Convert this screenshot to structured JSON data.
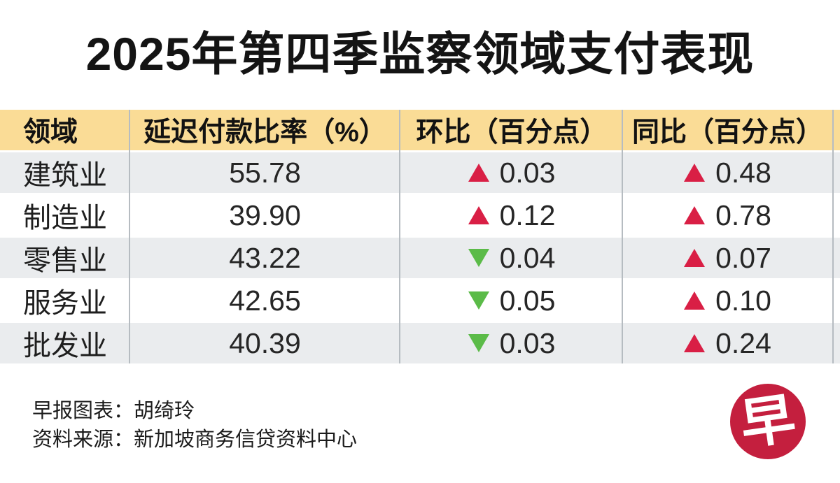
{
  "chart_data": {
    "type": "table",
    "title": "2025年第四季监察领域支付表现",
    "columns": [
      "领域",
      "延迟付款比率（%）",
      "环比（百分点）",
      "同比（百分点）"
    ],
    "rows": [
      {
        "sector": "建筑业",
        "rate": "55.78",
        "qoq_dir": "up",
        "qoq": "0.03",
        "yoy_dir": "up",
        "yoy": "0.48"
      },
      {
        "sector": "制造业",
        "rate": "39.90",
        "qoq_dir": "up",
        "qoq": "0.12",
        "yoy_dir": "up",
        "yoy": "0.78"
      },
      {
        "sector": "零售业",
        "rate": "43.22",
        "qoq_dir": "down",
        "qoq": "0.04",
        "yoy_dir": "up",
        "yoy": "0.07"
      },
      {
        "sector": "服务业",
        "rate": "42.65",
        "qoq_dir": "down",
        "qoq": "0.05",
        "yoy_dir": "up",
        "yoy": "0.10"
      },
      {
        "sector": "批发业",
        "rate": "40.39",
        "qoq_dir": "down",
        "qoq": "0.03",
        "yoy_dir": "up",
        "yoy": "0.24"
      }
    ],
    "legend": {
      "up_triangle": "上升",
      "down_triangle": "下降"
    }
  },
  "footer": {
    "credit": "早报图表：胡绮玲",
    "source": "资料来源：新加坡商务信贷资料中心"
  },
  "logo": {
    "glyph": "早"
  },
  "colors": {
    "header_bg": "#FADC96",
    "row_alt_bg": "#EAECEE",
    "up": "#D91F45",
    "down": "#5BBB48",
    "logo": "#C41F3E",
    "divider": "#B6BCC1"
  }
}
